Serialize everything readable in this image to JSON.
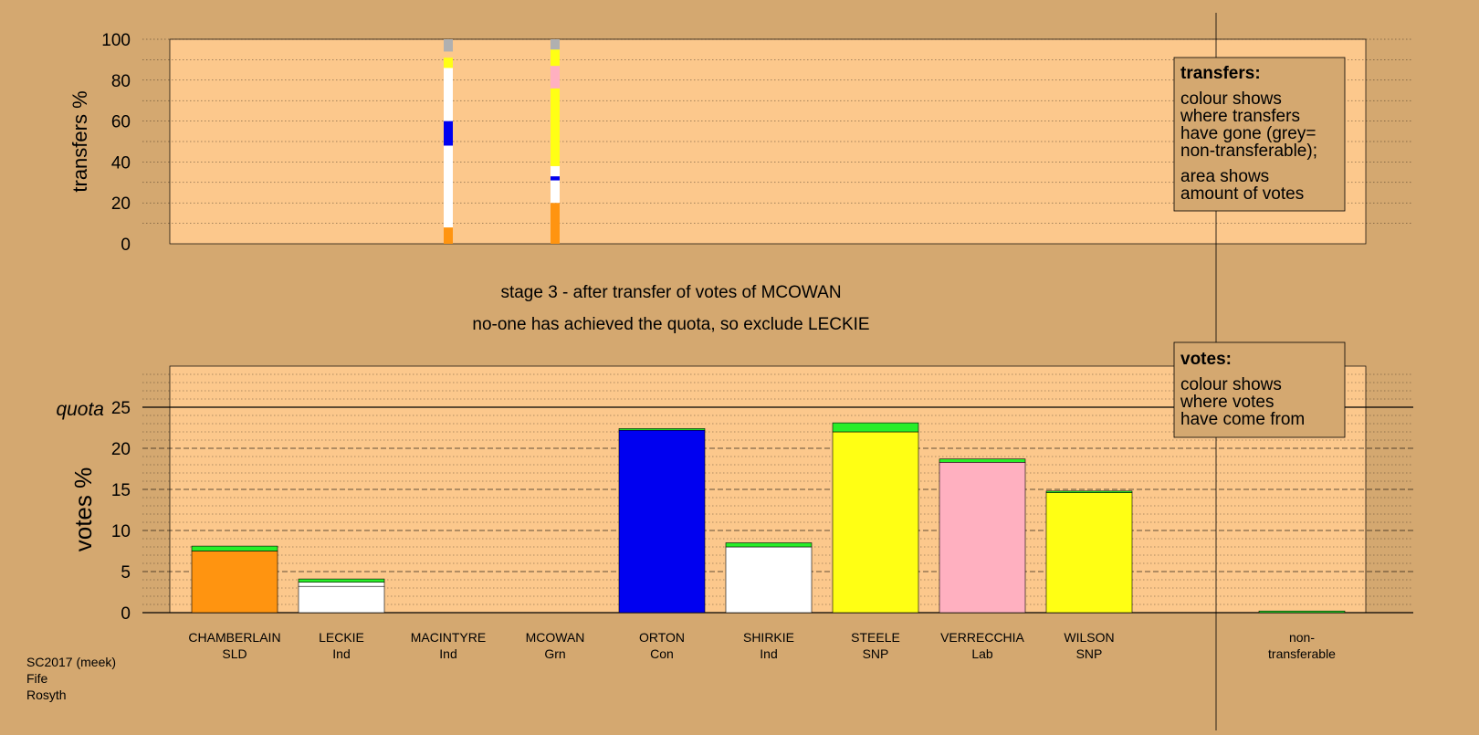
{
  "stage_text": "stage 3 - after transfer of votes of MCOWAN",
  "decision_text": "no-one has achieved the quota, so exclude LECKIE",
  "footer": [
    "SC2017 (meek)",
    "Fife",
    "Rosyth"
  ],
  "transfers_legend": {
    "title": "transfers:",
    "lines1": [
      "colour shows",
      "where transfers",
      "have gone (grey=",
      "non-transferable);"
    ],
    "lines2": [
      "area shows",
      "amount of votes"
    ]
  },
  "votes_legend": {
    "title": "votes:",
    "lines": [
      "colour shows",
      "where votes",
      "have come from"
    ]
  },
  "colors": {
    "background": "#d4a870",
    "plot_bg": "#fcc88c",
    "SLD": "#ff9410",
    "Ind": "#ffffff",
    "Con": "#0000f0",
    "SNP": "#ffff14",
    "Lab": "#ffb0c0",
    "Grn": "#28ee28",
    "nontransferable": "#b0b0b0"
  },
  "chart_data": [
    {
      "type": "bar",
      "title": "",
      "ylabel": "transfers %",
      "ylim": [
        0,
        100
      ],
      "yticks": [
        0,
        20,
        40,
        60,
        80,
        100
      ],
      "grid": true,
      "categories": [
        "CHAMBERLAIN",
        "LECKIE",
        "MACINTYRE",
        "MCOWAN",
        "ORTON",
        "SHIRKIE",
        "STEELE",
        "VERRECCHIA",
        "WILSON",
        "non-transferable"
      ],
      "transfer_columns": [
        {
          "category": "MACINTYRE",
          "segments": [
            {
              "to": "CHAMBERLAIN",
              "party": "SLD",
              "from": 0,
              "to_pct": 8
            },
            {
              "to": "LECKIE",
              "party": "Ind",
              "from": 8,
              "to_pct": 48
            },
            {
              "to": "ORTON",
              "party": "Con",
              "from": 48,
              "to_pct": 60
            },
            {
              "to": "SHIRKIE",
              "party": "Ind",
              "from": 60,
              "to_pct": 86
            },
            {
              "to": "STEELE",
              "party": "SNP",
              "from": 86,
              "to_pct": 91
            },
            {
              "to": "non-transferable",
              "party": "nontransferable",
              "from": 94,
              "to_pct": 100
            }
          ]
        },
        {
          "category": "MCOWAN",
          "segments": [
            {
              "to": "CHAMBERLAIN",
              "party": "SLD",
              "from": 0,
              "to_pct": 20
            },
            {
              "to": "LECKIE",
              "party": "Ind",
              "from": 20,
              "to_pct": 31
            },
            {
              "to": "ORTON",
              "party": "Con",
              "from": 31,
              "to_pct": 33
            },
            {
              "to": "SHIRKIE",
              "party": "Ind",
              "from": 33,
              "to_pct": 38
            },
            {
              "to": "STEELE",
              "party": "SNP",
              "from": 38,
              "to_pct": 76
            },
            {
              "to": "VERRECCHIA",
              "party": "Lab",
              "from": 76,
              "to_pct": 87
            },
            {
              "to": "WILSON",
              "party": "SNP",
              "from": 87,
              "to_pct": 95
            },
            {
              "to": "non-transferable",
              "party": "nontransferable",
              "from": 95,
              "to_pct": 100
            }
          ]
        }
      ]
    },
    {
      "type": "bar",
      "title": "",
      "ylabel": "votes %",
      "ylim": [
        0,
        30
      ],
      "yticks": [
        0,
        5,
        10,
        15,
        20,
        25
      ],
      "quota": 25,
      "quota_label": "quota",
      "grid": true,
      "candidates": [
        {
          "name": "CHAMBERLAIN",
          "party": "SLD",
          "segments": [
            {
              "party": "SLD",
              "value": 7.5
            },
            {
              "party": "Grn",
              "value": 0.6
            }
          ]
        },
        {
          "name": "LECKIE",
          "party": "Ind",
          "segments": [
            {
              "party": "Ind",
              "value": 3.2
            },
            {
              "party": "Ind",
              "value": 0.5
            },
            {
              "party": "Grn",
              "value": 0.4
            }
          ]
        },
        {
          "name": "MACINTYRE",
          "party": "Ind",
          "segments": []
        },
        {
          "name": "MCOWAN",
          "party": "Grn",
          "segments": []
        },
        {
          "name": "ORTON",
          "party": "Con",
          "segments": [
            {
              "party": "Con",
              "value": 22.2
            },
            {
              "party": "Grn",
              "value": 0.2
            }
          ]
        },
        {
          "name": "SHIRKIE",
          "party": "Ind",
          "segments": [
            {
              "party": "Ind",
              "value": 8.0
            },
            {
              "party": "Grn",
              "value": 0.5
            }
          ]
        },
        {
          "name": "STEELE",
          "party": "SNP",
          "segments": [
            {
              "party": "SNP",
              "value": 22.0
            },
            {
              "party": "Grn",
              "value": 1.1
            }
          ]
        },
        {
          "name": "VERRECCHIA",
          "party": "Lab",
          "segments": [
            {
              "party": "Lab",
              "value": 18.3
            },
            {
              "party": "Grn",
              "value": 0.4
            }
          ]
        },
        {
          "name": "WILSON",
          "party": "SNP",
          "segments": [
            {
              "party": "SNP",
              "value": 14.6
            },
            {
              "party": "Grn",
              "value": 0.2
            }
          ]
        }
      ],
      "nontransferable": {
        "label1": "non-",
        "label2": "transferable",
        "value": 0.2
      }
    }
  ]
}
